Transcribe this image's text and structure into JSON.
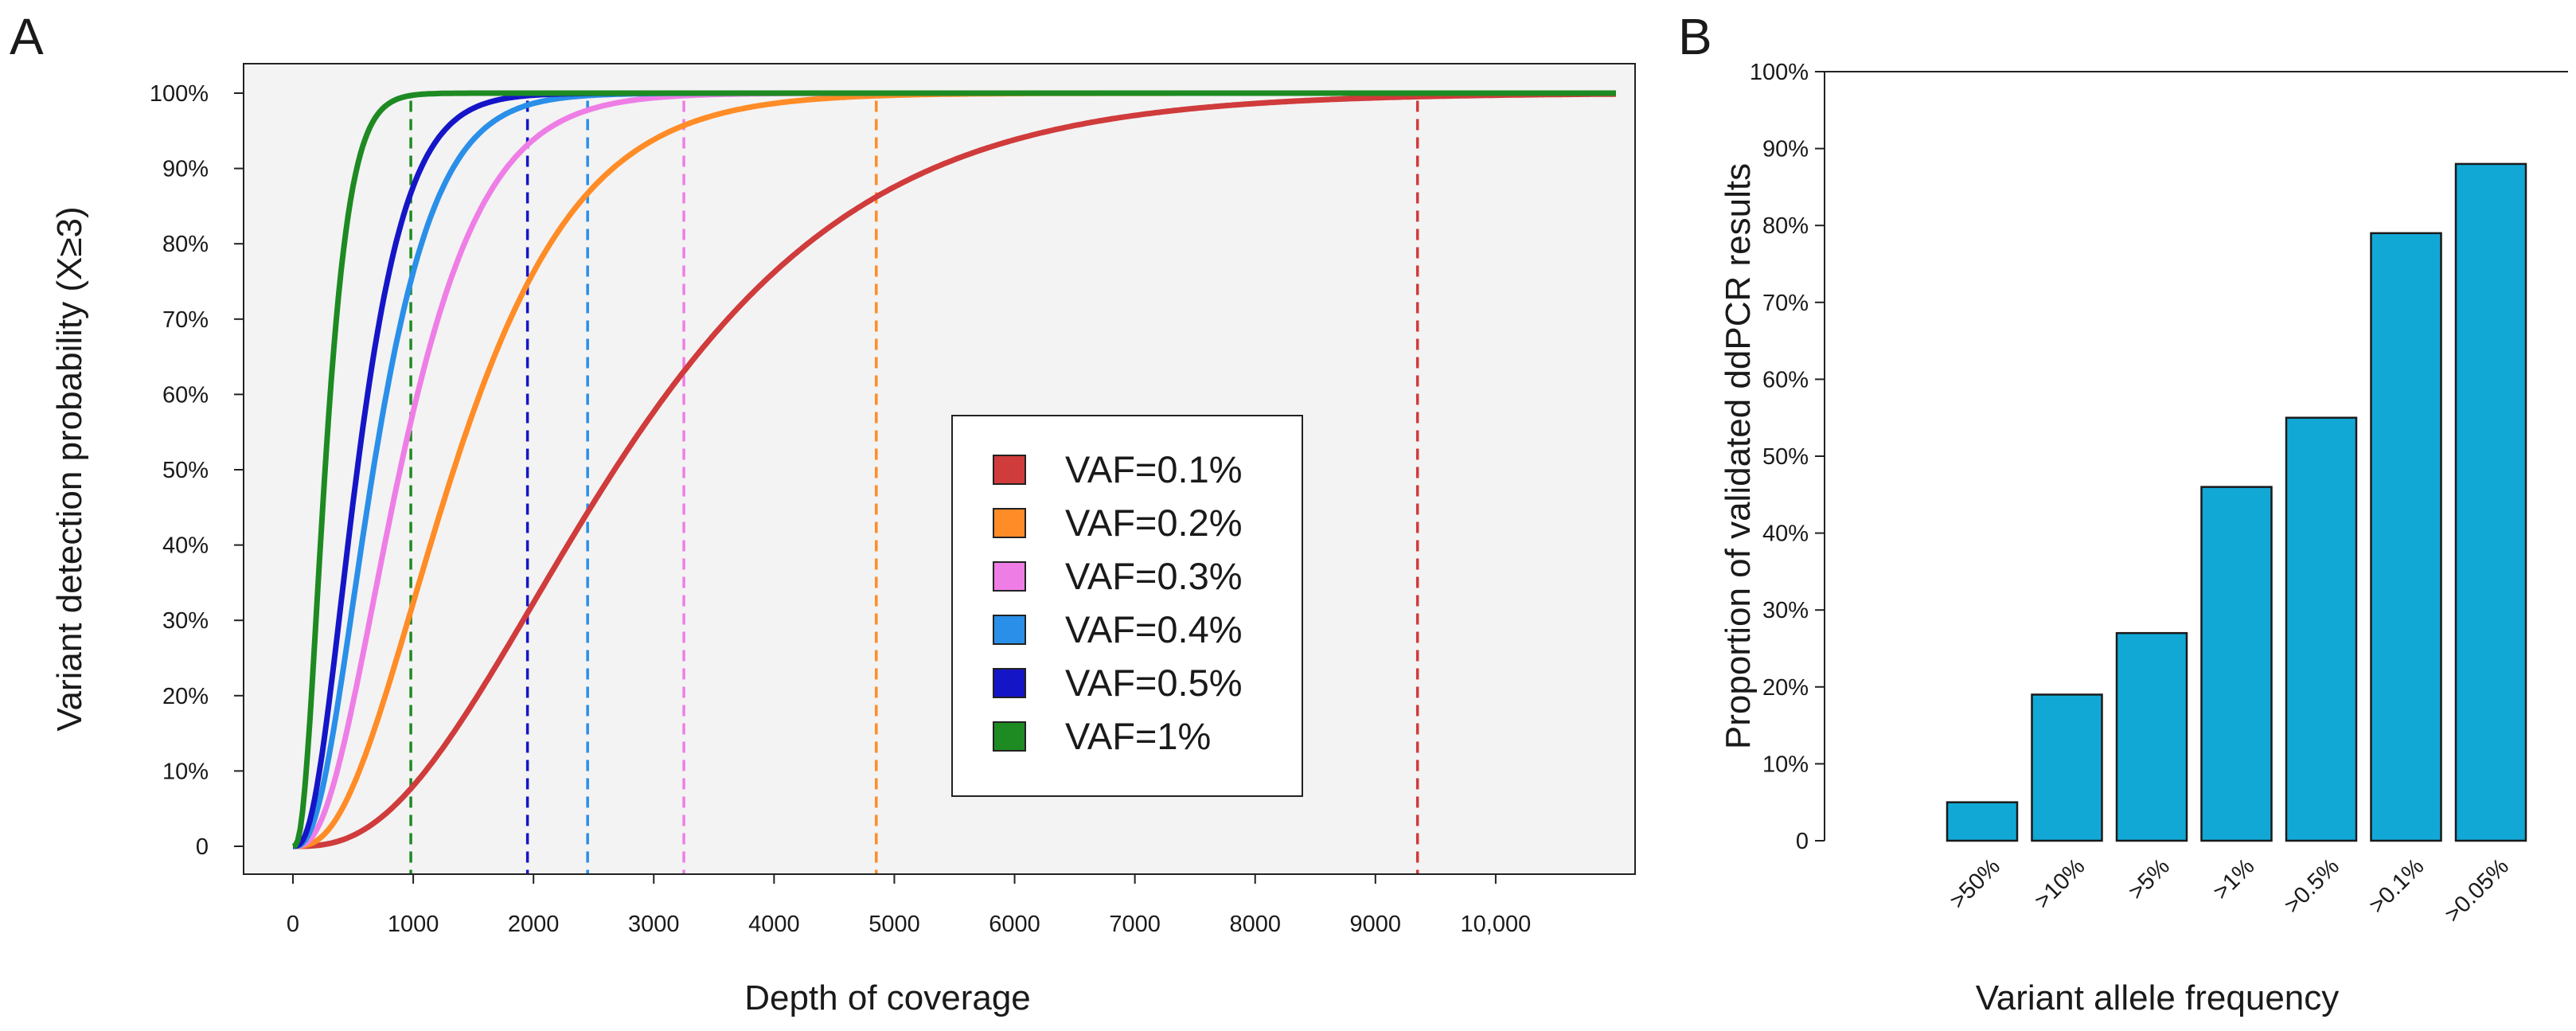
{
  "chart_data": [
    {
      "panel_label": "A",
      "type": "line",
      "xlabel": "Depth of coverage",
      "ylabel": "Variant detection probability (X≥3)",
      "xlim": [
        0,
        11000
      ],
      "ylim": [
        0,
        100
      ],
      "x_ticks": [
        0,
        1000,
        2000,
        3000,
        4000,
        5000,
        6000,
        7000,
        8000,
        9000,
        10000
      ],
      "x_tick_labels": [
        "0",
        "1000",
        "2000",
        "3000",
        "4000",
        "5000",
        "6000",
        "7000",
        "8000",
        "9000",
        "10,000"
      ],
      "y_ticks": [
        0,
        10,
        20,
        30,
        40,
        50,
        60,
        70,
        80,
        90,
        100
      ],
      "y_tick_labels": [
        "0",
        "10%",
        "20%",
        "30%",
        "40%",
        "50%",
        "60%",
        "70%",
        "80%",
        "90%",
        "100%"
      ],
      "legend_position": "center-right",
      "series": [
        {
          "name": "VAF=0.1%",
          "vaf": 0.001,
          "color": "#d03b3b",
          "threshold_depth": 9350
        },
        {
          "name": "VAF=0.2%",
          "vaf": 0.002,
          "color": "#ff8c26",
          "threshold_depth": 4850
        },
        {
          "name": "VAF=0.3%",
          "vaf": 0.003,
          "color": "#ee7ee6",
          "threshold_depth": 3250
        },
        {
          "name": "VAF=0.4%",
          "vaf": 0.004,
          "color": "#2a8fe8",
          "threshold_depth": 2450
        },
        {
          "name": "VAF=0.5%",
          "vaf": 0.005,
          "color": "#1515c8",
          "threshold_depth": 1950
        },
        {
          "name": "VAF=1%",
          "vaf": 0.01,
          "color": "#1e8a22",
          "threshold_depth": 980
        }
      ]
    },
    {
      "panel_label": "B",
      "type": "bar",
      "xlabel": "Variant allele frequency",
      "ylabel": "Proportion of validated ddPCR results",
      "ylim": [
        0,
        100
      ],
      "y_ticks": [
        0,
        10,
        20,
        30,
        40,
        50,
        60,
        70,
        80,
        90,
        100
      ],
      "y_tick_labels": [
        "0",
        "10%",
        "20%",
        "30%",
        "40%",
        "50%",
        "60%",
        "70%",
        "80%",
        "90%",
        "100%"
      ],
      "categories": [
        ">50%",
        ">10%",
        ">5%",
        ">1%",
        ">0.5%",
        ">0.1%",
        ">0.05%"
      ],
      "values": [
        5,
        19,
        27,
        46,
        55,
        79,
        88
      ],
      "bar_color": "#12a8d6"
    }
  ]
}
